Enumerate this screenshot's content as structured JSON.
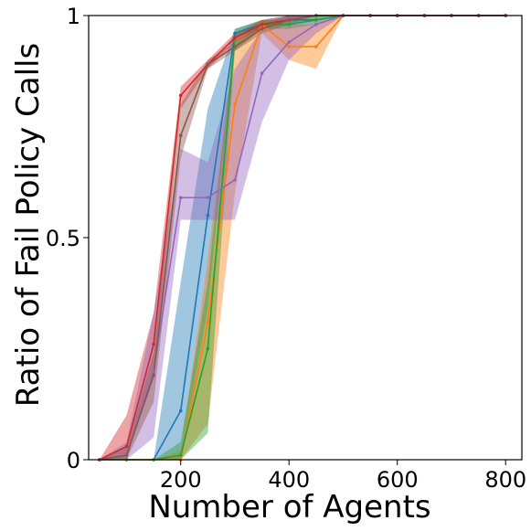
{
  "chart_data": {
    "type": "line",
    "title": "",
    "xlabel": "Number of Agents",
    "ylabel": "Ratio of Fail Policy Calls",
    "xlim": [
      30,
      830
    ],
    "ylim": [
      0,
      1
    ],
    "xticks": [
      200,
      400,
      600,
      800
    ],
    "xtick_labels": [
      "200",
      "400",
      "600",
      "800"
    ],
    "yticks": [
      0,
      0.5,
      1
    ],
    "ytick_labels": [
      "0",
      "0.5",
      "1"
    ],
    "grid": false,
    "legend": "none",
    "series": [
      {
        "color": "#1f77b4",
        "x": [
          50,
          100,
          150,
          200,
          250,
          300,
          350,
          400,
          450,
          500,
          550,
          600,
          650,
          700,
          750,
          800
        ],
        "y": [
          0.0,
          0.0,
          0.0,
          0.11,
          0.55,
          0.96,
          0.98,
          0.99,
          0.99,
          1.0,
          1.0,
          1.0,
          1.0,
          1.0,
          1.0,
          1.0
        ],
        "lower": [
          0.0,
          0.0,
          0.0,
          0.0,
          0.34,
          0.95,
          0.97,
          0.98,
          0.99,
          1.0,
          1.0,
          1.0,
          1.0,
          1.0,
          1.0,
          1.0
        ],
        "upper": [
          0.0,
          0.0,
          0.0,
          0.4,
          0.79,
          0.97,
          0.99,
          1.0,
          1.0,
          1.0,
          1.0,
          1.0,
          1.0,
          1.0,
          1.0,
          1.0
        ]
      },
      {
        "color": "#ff7f0e",
        "x": [
          50,
          100,
          150,
          200,
          250,
          300,
          350,
          400,
          450,
          500,
          550,
          600,
          650,
          700,
          750,
          800
        ],
        "y": [
          0.0,
          0.0,
          0.0,
          0.0,
          0.31,
          0.8,
          0.98,
          0.93,
          0.93,
          1.0,
          1.0,
          1.0,
          1.0,
          1.0,
          1.0,
          1.0
        ],
        "lower": [
          0.0,
          0.0,
          0.0,
          0.0,
          0.08,
          0.6,
          0.96,
          0.9,
          0.88,
          1.0,
          1.0,
          1.0,
          1.0,
          1.0,
          1.0,
          1.0
        ],
        "upper": [
          0.0,
          0.0,
          0.0,
          0.02,
          0.45,
          0.95,
          0.99,
          0.98,
          0.98,
          1.0,
          1.0,
          1.0,
          1.0,
          1.0,
          1.0,
          1.0
        ]
      },
      {
        "color": "#2ca02c",
        "x": [
          50,
          100,
          150,
          200,
          250,
          300,
          350,
          400,
          450,
          500,
          550,
          600,
          650,
          700,
          750,
          800
        ],
        "y": [
          0.0,
          0.0,
          0.0,
          0.01,
          0.25,
          0.95,
          0.98,
          0.98,
          0.99,
          1.0,
          1.0,
          1.0,
          1.0,
          1.0,
          1.0,
          1.0
        ],
        "lower": [
          0.0,
          0.0,
          0.0,
          0.0,
          0.06,
          0.92,
          0.97,
          0.97,
          0.98,
          1.0,
          1.0,
          1.0,
          1.0,
          1.0,
          1.0,
          1.0
        ],
        "upper": [
          0.0,
          0.0,
          0.0,
          0.04,
          0.4,
          0.97,
          0.99,
          0.99,
          1.0,
          1.0,
          1.0,
          1.0,
          1.0,
          1.0,
          1.0,
          1.0
        ]
      },
      {
        "color": "#d62728",
        "x": [
          50,
          100,
          150,
          200,
          250,
          300,
          350,
          400,
          450,
          500,
          550,
          600,
          650,
          700,
          750,
          800
        ],
        "y": [
          0.0,
          0.03,
          0.26,
          0.82,
          0.89,
          0.95,
          0.98,
          0.99,
          1.0,
          1.0,
          1.0,
          1.0,
          1.0,
          1.0,
          1.0,
          1.0
        ],
        "lower": [
          0.0,
          0.0,
          0.2,
          0.79,
          0.88,
          0.94,
          0.97,
          0.99,
          1.0,
          1.0,
          1.0,
          1.0,
          1.0,
          1.0,
          1.0,
          1.0
        ],
        "upper": [
          0.0,
          0.1,
          0.33,
          0.84,
          0.9,
          0.96,
          0.99,
          1.0,
          1.0,
          1.0,
          1.0,
          1.0,
          1.0,
          1.0,
          1.0,
          1.0
        ]
      },
      {
        "color": "#9467bd",
        "x": [
          50,
          100,
          150,
          200,
          250,
          300,
          350,
          400,
          450,
          500,
          550,
          600,
          650,
          700,
          750,
          800
        ],
        "y": [
          0.0,
          0.01,
          0.2,
          0.59,
          0.59,
          0.63,
          0.87,
          0.94,
          0.98,
          1.0,
          1.0,
          1.0,
          1.0,
          1.0,
          1.0,
          1.0
        ],
        "lower": [
          0.0,
          0.0,
          0.05,
          0.54,
          0.54,
          0.54,
          0.76,
          0.9,
          0.96,
          1.0,
          1.0,
          1.0,
          1.0,
          1.0,
          1.0,
          1.0
        ],
        "upper": [
          0.0,
          0.04,
          0.33,
          0.7,
          0.67,
          0.88,
          0.97,
          0.98,
          0.99,
          1.0,
          1.0,
          1.0,
          1.0,
          1.0,
          1.0,
          1.0
        ]
      },
      {
        "color": "#8c564b",
        "x": [
          50,
          100,
          150,
          200,
          250,
          300,
          350,
          400,
          450,
          500,
          550,
          600,
          650,
          700,
          750,
          800
        ],
        "y": [
          0.0,
          0.01,
          0.19,
          0.73,
          0.89,
          0.93,
          0.97,
          0.99,
          1.0,
          1.0,
          1.0,
          1.0,
          1.0,
          1.0,
          1.0,
          1.0
        ],
        "lower": [
          0.0,
          0.0,
          0.13,
          0.68,
          0.88,
          0.92,
          0.96,
          0.98,
          1.0,
          1.0,
          1.0,
          1.0,
          1.0,
          1.0,
          1.0,
          1.0
        ],
        "upper": [
          0.0,
          0.03,
          0.24,
          0.8,
          0.9,
          0.94,
          0.98,
          1.0,
          1.0,
          1.0,
          1.0,
          1.0,
          1.0,
          1.0,
          1.0,
          1.0
        ]
      }
    ]
  }
}
